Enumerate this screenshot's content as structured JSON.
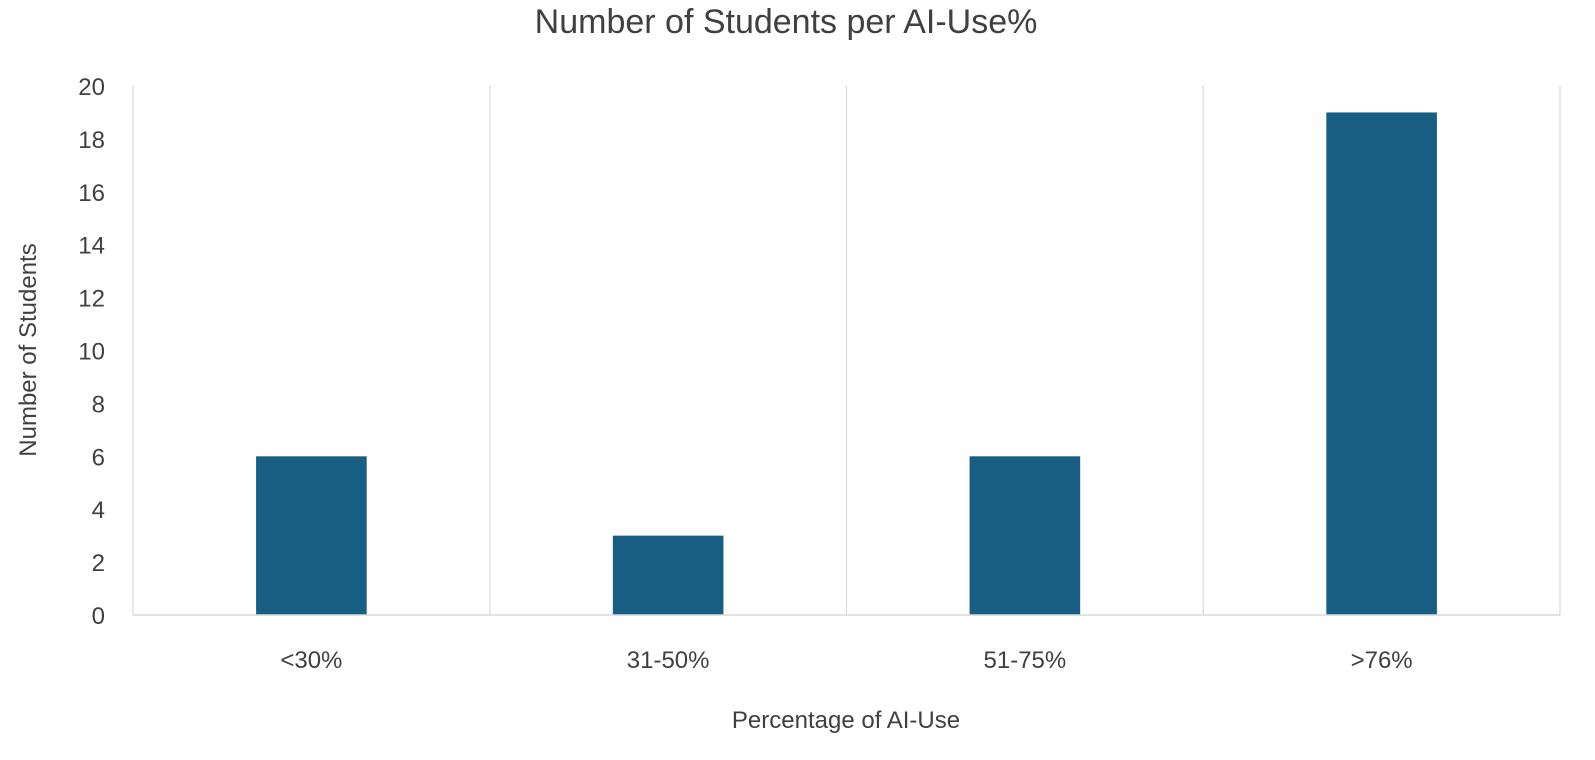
{
  "chart_data": {
    "type": "bar",
    "title": "Number of Students per AI-Use%",
    "xlabel": "Percentage of AI-Use",
    "ylabel": "Number of Students",
    "categories": [
      "<30%",
      "31-50%",
      "51-75%",
      ">76%"
    ],
    "series": [
      {
        "values": [
          6,
          3,
          6,
          19
        ]
      }
    ],
    "ylim": [
      0,
      20
    ],
    "yticks": [
      0,
      2,
      4,
      6,
      8,
      10,
      12,
      14,
      16,
      18,
      20
    ],
    "grid": "vertical",
    "legend": "none",
    "bar_color": "#175e82",
    "grid_color": "#d9d9d9"
  }
}
